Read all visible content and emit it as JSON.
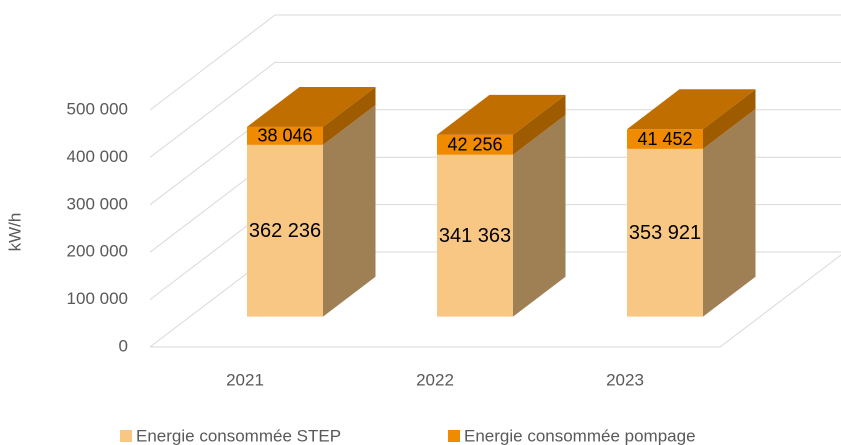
{
  "chart_data": {
    "type": "bar3d_stacked",
    "categories": [
      "2021",
      "2022",
      "2023"
    ],
    "series": [
      {
        "name": "Energie consommée STEP",
        "color": "#f9c784",
        "values": [
          362236,
          341363,
          353921
        ],
        "value_labels": [
          "362 236",
          "341 363",
          "353 921"
        ]
      },
      {
        "name": "Energie consommée pompage",
        "color": "#f08a00",
        "values": [
          38046,
          42256,
          41452
        ],
        "value_labels": [
          "38 046",
          "42 256",
          "41 452"
        ]
      }
    ],
    "y_label": "kW/h",
    "ylim": [
      0,
      500000
    ],
    "yticks": [
      0,
      {
        "value": 100000,
        "label": "100 000"
      },
      {
        "value": 200000,
        "label": "200 000"
      },
      {
        "value": 300000,
        "label": "300 000"
      },
      {
        "value": 400000,
        "label": "400 000"
      },
      {
        "value": 500000,
        "label": "500 000"
      }
    ],
    "grid": true,
    "legend": "bottom"
  }
}
